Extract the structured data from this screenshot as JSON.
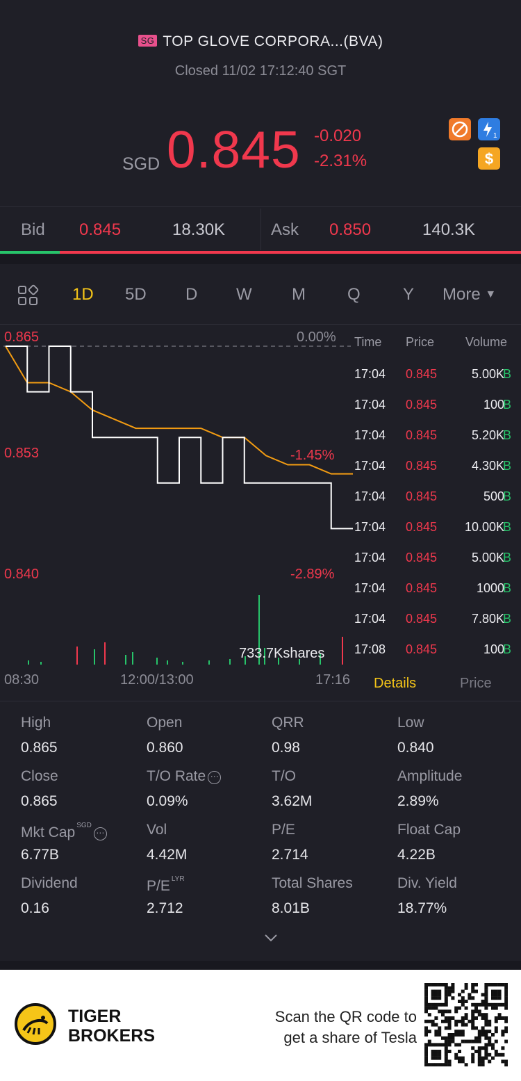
{
  "header": {
    "market_badge": "SG",
    "title": "TOP GLOVE CORPORA...(BVA)",
    "status": "Closed 11/02 17:12:40 SGT"
  },
  "quote": {
    "currency": "SGD",
    "price": "0.845",
    "change": "-0.020",
    "change_pct": "-2.31%"
  },
  "bidask": {
    "bid_label": "Bid",
    "bid_price": "0.845",
    "bid_size": "18.30K",
    "ask_label": "Ask",
    "ask_price": "0.850",
    "ask_size": "140.3K",
    "bid_ratio": 0.115
  },
  "periods": [
    "1D",
    "5D",
    "D",
    "W",
    "M",
    "Q",
    "Y",
    "More"
  ],
  "active_period": "1D",
  "chart": {
    "price_labels": [
      "0.865",
      "0.853",
      "0.840"
    ],
    "pct_labels": [
      "0.00%",
      "-1.45%",
      "-2.89%"
    ],
    "volume_label": "733.7Kshares",
    "time_labels": [
      "08:30",
      "12:00/13:00",
      "17:16"
    ]
  },
  "chart_data": {
    "type": "line",
    "title": "",
    "xlabel": "",
    "ylabel": "",
    "x": [
      "08:30",
      "09:00",
      "09:30",
      "10:00",
      "10:30",
      "11:00",
      "11:30",
      "12:00/13:00",
      "13:30",
      "14:00",
      "14:30",
      "15:00",
      "15:30",
      "16:00",
      "16:30",
      "17:00",
      "17:16"
    ],
    "ylim": [
      0.84,
      0.865
    ],
    "series": [
      {
        "values": [
          0.865,
          0.86,
          0.865,
          0.86,
          0.855,
          0.855,
          0.855,
          0.85,
          0.855,
          0.85,
          0.855,
          0.85,
          0.85,
          0.85,
          0.85,
          0.845,
          0.845
        ]
      },
      {
        "values": [
          0.865,
          0.861,
          0.861,
          0.86,
          0.858,
          0.857,
          0.856,
          0.856,
          0.856,
          0.856,
          0.855,
          0.855,
          0.853,
          0.852,
          0.852,
          0.851,
          0.851
        ]
      }
    ]
  },
  "ticks": {
    "headers": [
      "Time",
      "Price",
      "Volume"
    ],
    "rows": [
      {
        "time": "17:04",
        "price": "0.845",
        "volume": "5.00K",
        "side": "B"
      },
      {
        "time": "17:04",
        "price": "0.845",
        "volume": "100",
        "side": "B"
      },
      {
        "time": "17:04",
        "price": "0.845",
        "volume": "5.20K",
        "side": "B"
      },
      {
        "time": "17:04",
        "price": "0.845",
        "volume": "4.30K",
        "side": "B"
      },
      {
        "time": "17:04",
        "price": "0.845",
        "volume": "500",
        "side": "B"
      },
      {
        "time": "17:04",
        "price": "0.845",
        "volume": "10.00K",
        "side": "B"
      },
      {
        "time": "17:04",
        "price": "0.845",
        "volume": "5.00K",
        "side": "B"
      },
      {
        "time": "17:04",
        "price": "0.845",
        "volume": "1000",
        "side": "B"
      },
      {
        "time": "17:04",
        "price": "0.845",
        "volume": "7.80K",
        "side": "B"
      },
      {
        "time": "17:08",
        "price": "0.845",
        "volume": "100",
        "side": "B"
      }
    ]
  },
  "tabs": {
    "details": "Details",
    "price": "Price"
  },
  "stats": [
    {
      "label": "High",
      "value": "0.865"
    },
    {
      "label": "Open",
      "value": "0.860"
    },
    {
      "label": "QRR",
      "value": "0.98"
    },
    {
      "label": "Low",
      "value": "0.840"
    },
    {
      "label": "Close",
      "value": "0.865"
    },
    {
      "label": "T/O Rate",
      "value": "0.09%"
    },
    {
      "label": "T/O",
      "value": "3.62M"
    },
    {
      "label": "Amplitude",
      "value": "2.89%"
    },
    {
      "label": "Mkt Cap",
      "value": "6.77B",
      "sup": "SGD"
    },
    {
      "label": "Vol",
      "value": "4.42M"
    },
    {
      "label": "P/E",
      "value": "2.714"
    },
    {
      "label": "Float Cap",
      "value": "4.22B"
    },
    {
      "label": "Dividend",
      "value": "0.16"
    },
    {
      "label": "P/E",
      "value": "2.712",
      "sup": "LYR"
    },
    {
      "label": "Total Shares",
      "value": "8.01B"
    },
    {
      "label": "Div. Yield",
      "value": "18.77%"
    }
  ],
  "footer": {
    "brand_line1": "TIGER",
    "brand_line2": "BROKERS",
    "promo_line1": "Scan the QR code to",
    "promo_line2": "get a share of Tesla"
  },
  "colors": {
    "up": "#f0384d",
    "down": "#27c46a",
    "accent": "#f5c518",
    "avg_line": "#f39c12"
  }
}
